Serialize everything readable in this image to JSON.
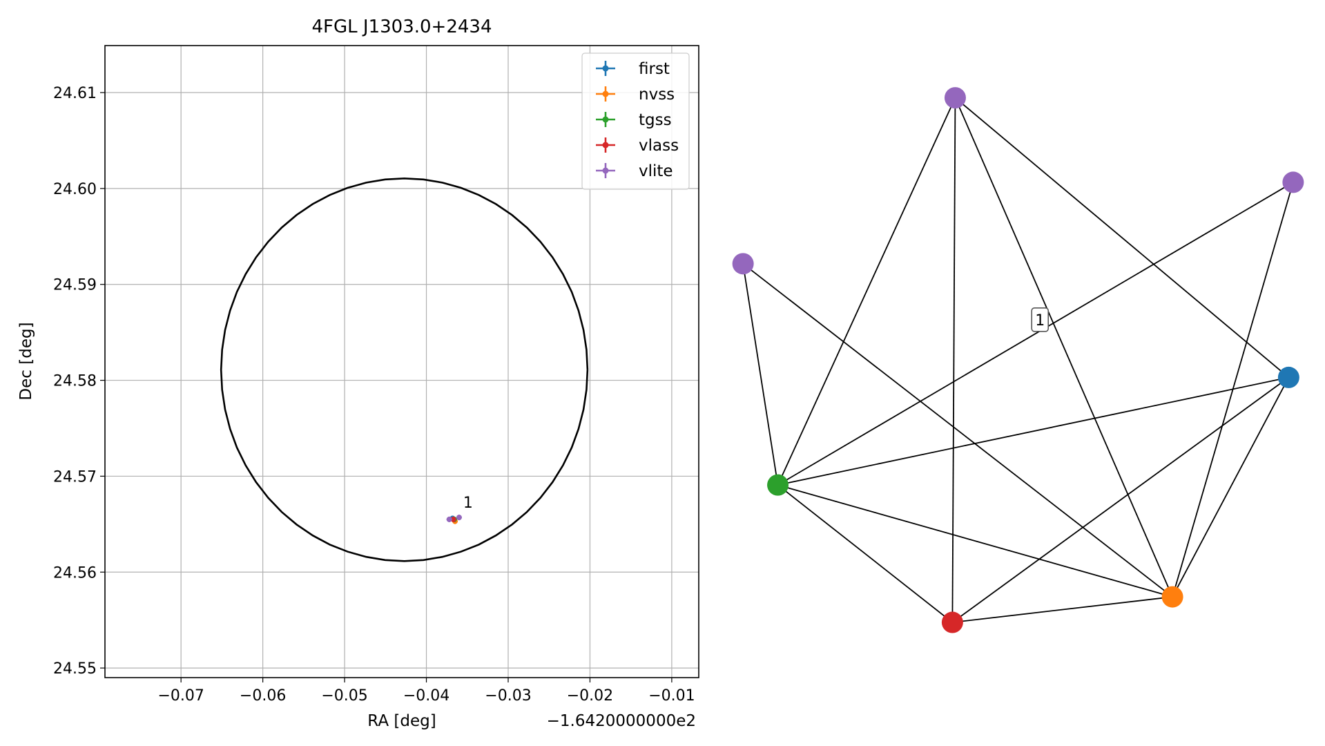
{
  "chart_data": [
    {
      "type": "scatter",
      "title": "4FGL J1303.0+2434",
      "xlabel": "RA [deg]",
      "ylabel": "Dec [deg]",
      "x_offset_text": "−1.6420000000e2",
      "xlim": [
        -0.0793,
        -0.0067
      ],
      "ylim": [
        24.549,
        24.6149
      ],
      "x_ticks": [
        -0.07,
        -0.06,
        -0.05,
        -0.04,
        -0.03,
        -0.02,
        -0.01
      ],
      "x_tick_labels": [
        "−0.07",
        "−0.06",
        "−0.05",
        "−0.04",
        "−0.03",
        "−0.02",
        "−0.01"
      ],
      "y_ticks": [
        24.55,
        24.56,
        24.57,
        24.58,
        24.59,
        24.6,
        24.61
      ],
      "y_tick_labels": [
        "24.55",
        "24.56",
        "24.57",
        "24.58",
        "24.59",
        "24.60",
        "24.61"
      ],
      "grid": true,
      "legend_position": "top-right",
      "ellipse": {
        "center": [
          -0.0427,
          24.5811
        ],
        "semi_axis_x": 0.0224,
        "semi_axis_y": 0.01995,
        "color": "#000000"
      },
      "series": [
        {
          "name": "first",
          "color": "#1f77b4",
          "points": [
            [
              -0.0368,
              24.5656
            ]
          ]
        },
        {
          "name": "nvss",
          "color": "#ff7f0e",
          "points": [
            [
              -0.0365,
              24.5653
            ]
          ]
        },
        {
          "name": "tgss",
          "color": "#2ca02c",
          "points": [
            [
              -0.0366,
              24.5655
            ]
          ]
        },
        {
          "name": "vlass",
          "color": "#d62728",
          "points": [
            [
              -0.0367,
              24.5655
            ]
          ]
        },
        {
          "name": "vlite",
          "color": "#9467bd",
          "points": [
            [
              -0.0372,
              24.5655
            ],
            [
              -0.036,
              24.5657
            ]
          ]
        }
      ],
      "annotations": [
        {
          "text": "1",
          "x": -0.0355,
          "y": 24.5667
        }
      ]
    },
    {
      "type": "network",
      "cluster_label": "1",
      "nodes": [
        {
          "id": "vlite_top",
          "color": "#9467bd",
          "x": 0.388,
          "y": 0.905
        },
        {
          "id": "vlite_right",
          "color": "#9467bd",
          "x": 0.99,
          "y": 0.766
        },
        {
          "id": "vlite_left",
          "color": "#9467bd",
          "x": 0.01,
          "y": 0.632
        },
        {
          "id": "first",
          "color": "#1f77b4",
          "x": 0.982,
          "y": 0.445
        },
        {
          "id": "tgss",
          "color": "#2ca02c",
          "x": 0.072,
          "y": 0.268
        },
        {
          "id": "nvss",
          "color": "#ff7f0e",
          "x": 0.775,
          "y": 0.084
        },
        {
          "id": "vlass",
          "color": "#d62728",
          "x": 0.383,
          "y": 0.042
        }
      ],
      "edges": [
        [
          "vlite_top",
          "tgss"
        ],
        [
          "vlite_top",
          "vlass"
        ],
        [
          "vlite_top",
          "nvss"
        ],
        [
          "vlite_top",
          "first"
        ],
        [
          "vlite_right",
          "tgss"
        ],
        [
          "vlite_right",
          "nvss"
        ],
        [
          "vlite_left",
          "tgss"
        ],
        [
          "vlite_left",
          "nvss"
        ],
        [
          "tgss",
          "first"
        ],
        [
          "tgss",
          "nvss"
        ],
        [
          "tgss",
          "vlass"
        ],
        [
          "first",
          "vlass"
        ],
        [
          "first",
          "nvss"
        ],
        [
          "vlass",
          "nvss"
        ]
      ],
      "cluster_label_position": {
        "x": 0.539,
        "y": 0.54
      }
    }
  ]
}
